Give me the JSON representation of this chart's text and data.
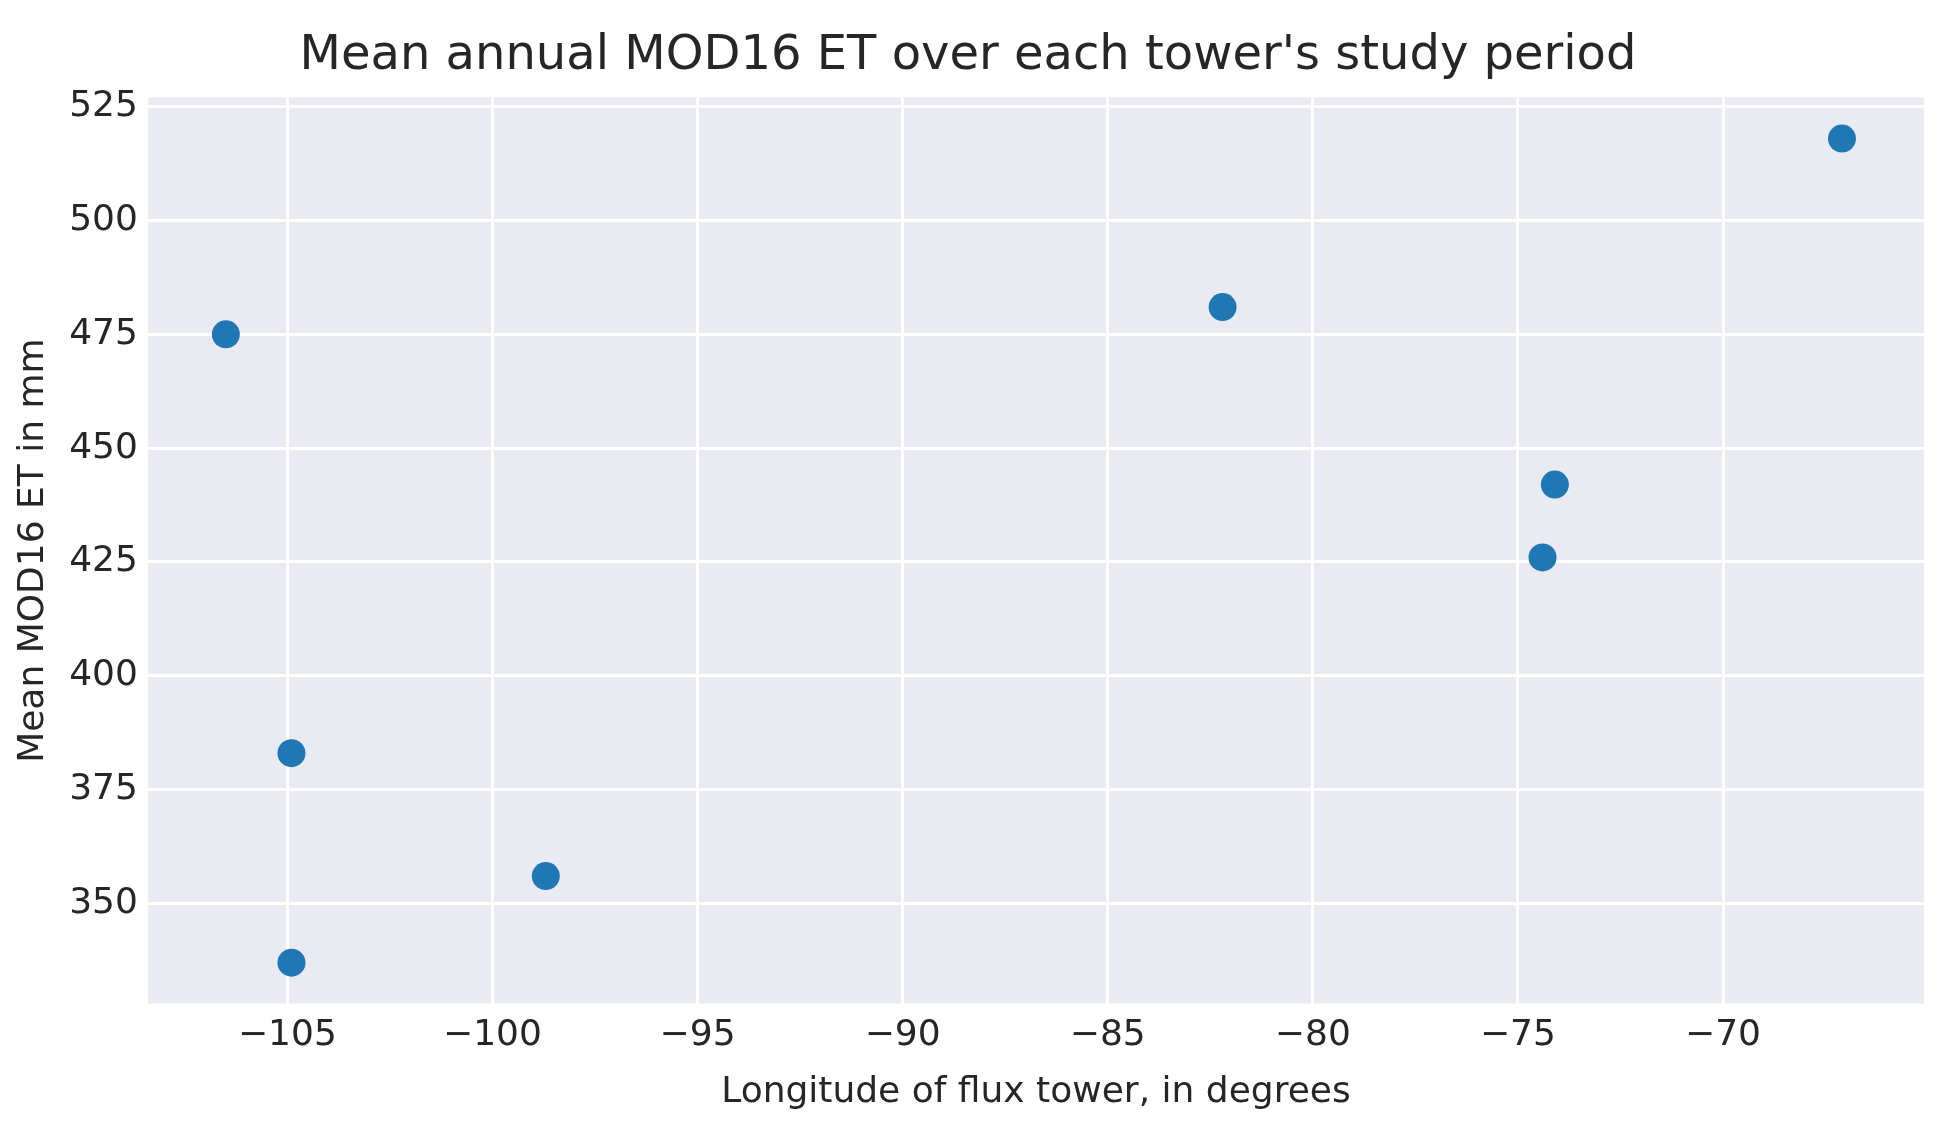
{
  "chart_data": {
    "type": "scatter",
    "title": "Mean annual MOD16 ET over each tower's study period",
    "xlabel": "Longitude of flux tower, in degrees",
    "ylabel": "Mean MOD16 ET in mm",
    "x": [
      -106.5,
      -104.9,
      -104.9,
      -98.7,
      -82.2,
      -74.1,
      -74.4,
      -67.1
    ],
    "values": [
      475,
      383,
      337,
      356,
      481,
      442,
      426,
      518
    ],
    "color": "#1f77b4",
    "marker": "circle",
    "grid": true,
    "xlim": [
      -108.4,
      -65.1
    ],
    "xticks": [
      {
        "value": -105,
        "label": "−105"
      },
      {
        "value": -100,
        "label": "−100"
      },
      {
        "value": -95,
        "label": "−95"
      },
      {
        "value": -90,
        "label": "−90"
      },
      {
        "value": -85,
        "label": "−85"
      },
      {
        "value": -80,
        "label": "−80"
      },
      {
        "value": -75,
        "label": "−75"
      },
      {
        "value": -70,
        "label": "−70"
      }
    ],
    "ylim": [
      328,
      527
    ],
    "yticks": [
      350,
      375,
      400,
      425,
      450,
      475,
      500,
      525
    ]
  }
}
